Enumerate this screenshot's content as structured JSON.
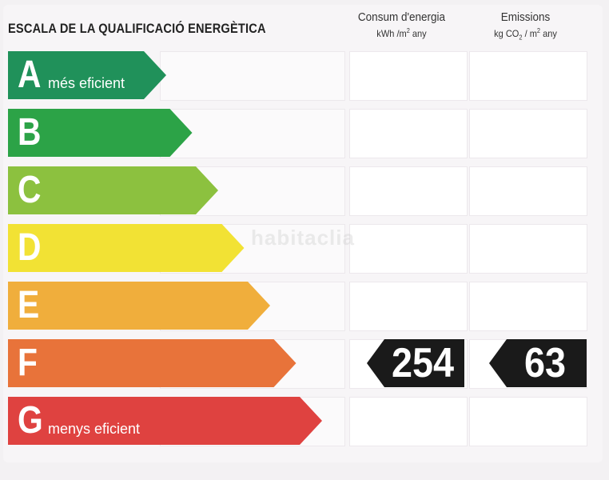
{
  "title": "ESCALA DE LA QUALIFICACIÓ ENERGÈTICA",
  "columns": {
    "consum": {
      "heading": "Consum d'energia",
      "unit_pre": "kWh /m",
      "unit_sup": "2",
      "unit_post": " any"
    },
    "emissions": {
      "heading": "Emissions",
      "unit_pre": "kg CO",
      "unit_sub": "2",
      "unit_mid": " / m",
      "unit_sup": "2",
      "unit_post": "  any"
    }
  },
  "rating_scale": [
    {
      "letter": "A",
      "label": "més eficient",
      "color": "#20915a"
    },
    {
      "letter": "B",
      "label": "",
      "color": "#2ca347"
    },
    {
      "letter": "C",
      "label": "",
      "color": "#8cc13f"
    },
    {
      "letter": "D",
      "label": "",
      "color": "#f2e234"
    },
    {
      "letter": "E",
      "label": "",
      "color": "#f0ae3c"
    },
    {
      "letter": "F",
      "label": "",
      "color": "#e8733a"
    },
    {
      "letter": "G",
      "label": "menys eficient",
      "color": "#df4240"
    }
  ],
  "current_rating": "F",
  "values": {
    "consum": "254",
    "emissions": "63"
  },
  "watermark": "habitaclia"
}
